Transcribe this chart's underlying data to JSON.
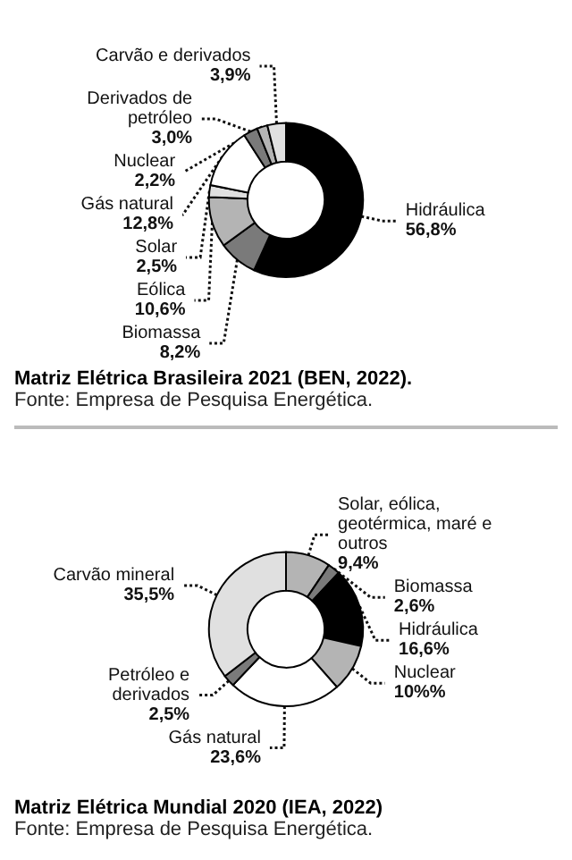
{
  "chart_data": [
    {
      "type": "donut",
      "title": "Matriz Elétrica Brasileira 2021 (BEN, 2022).",
      "annotations": [
        "Fonte: Empresa de Pesquisa Energética."
      ],
      "categories": [
        "Hidráulica",
        "Biomassa",
        "Eólica",
        "Solar",
        "Gás natural",
        "Derivados de petróleo",
        "Nuclear",
        "Carvão e derivados"
      ],
      "values": [
        56.8,
        8.2,
        10.6,
        2.5,
        12.8,
        3.0,
        2.2,
        3.9
      ],
      "value_labels": [
        "56,8%",
        "8,2%",
        "10,6%",
        "2,5%",
        "12,8%",
        "3,0%",
        "2,2%",
        "3,9%"
      ],
      "colors": [
        "#000000",
        "#7a7a7a",
        "#b4b4b4",
        "#e0e0e0",
        "#ffffff",
        "#7a7a7a",
        "#b4b4b4",
        "#e0e0e0"
      ],
      "legend": false
    },
    {
      "type": "donut",
      "title": "Matriz Elétrica Mundial 2020 (IEA, 2022)",
      "annotations": [
        "Fonte: Empresa de Pesquisa Energética."
      ],
      "categories": [
        "Solar, eólica, geotérmica, maré e outros",
        "Biomassa",
        "Hidráulica",
        "Nuclear",
        "Gás natural",
        "Petróleo e derivados",
        "Carvão mineral"
      ],
      "values": [
        9.4,
        2.6,
        16.6,
        10,
        23.6,
        2.5,
        35.5
      ],
      "value_labels": [
        "9,4%",
        "2,6%",
        "16,6%",
        "10%%",
        "23,6%",
        "2,5%",
        "35,5%"
      ],
      "colors": [
        "#b4b4b4",
        "#7a7a7a",
        "#000000",
        "#b4b4b4",
        "#ffffff",
        "#7a7a7a",
        "#e0e0e0"
      ],
      "legend": false
    }
  ]
}
